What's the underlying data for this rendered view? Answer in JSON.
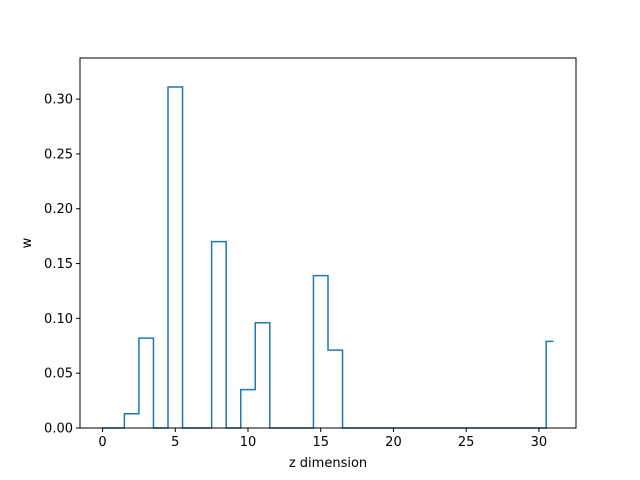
{
  "chart_data": {
    "type": "line",
    "style": "step-mid",
    "title": "",
    "xlabel": "z dimension",
    "ylabel": "w",
    "xlim": [
      -1.55,
      32.55
    ],
    "ylim": [
      0,
      0.3375
    ],
    "xticks": [
      0,
      5,
      10,
      15,
      20,
      25,
      30
    ],
    "yticks": [
      0.0,
      0.05,
      0.1,
      0.15,
      0.2,
      0.25,
      0.3
    ],
    "ytick_labels": [
      "0.00",
      "0.05",
      "0.10",
      "0.15",
      "0.20",
      "0.25",
      "0.30"
    ],
    "grid": false,
    "legend": "none",
    "line_color": "#1f77b4",
    "series": [
      {
        "x": [
          0,
          1,
          2,
          3,
          4,
          5,
          6,
          7,
          8,
          9,
          10,
          11,
          12,
          13,
          14,
          15,
          16,
          17,
          18,
          19,
          20,
          21,
          22,
          23,
          24,
          25,
          26,
          27,
          28,
          29,
          30,
          31
        ],
        "values": [
          0,
          0,
          0.013,
          0.082,
          0,
          0.311,
          0,
          0,
          0.17,
          0,
          0.035,
          0.096,
          0,
          0,
          0,
          0.139,
          0.071,
          0,
          0,
          0,
          0,
          0,
          0,
          0,
          0,
          0,
          0,
          0,
          0,
          0,
          0,
          0.079
        ]
      }
    ]
  }
}
